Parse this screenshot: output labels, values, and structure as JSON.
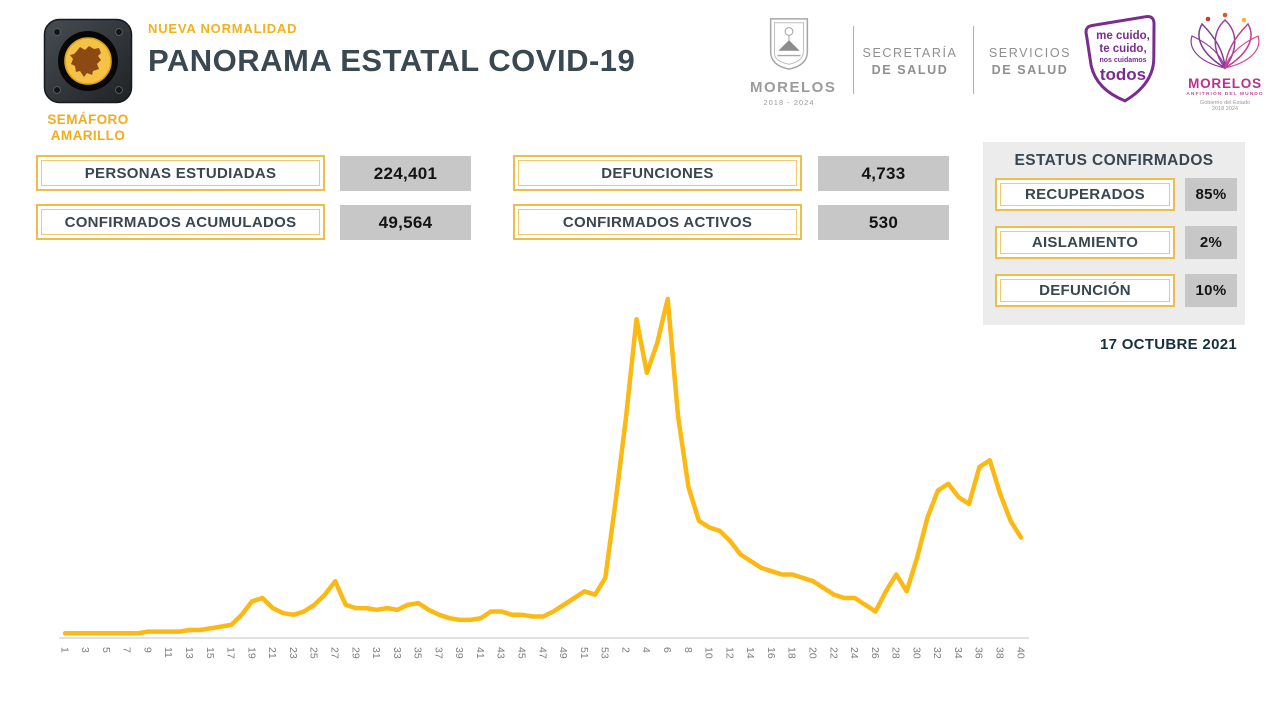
{
  "header": {
    "badge": {
      "line1": "SEMÁFORO",
      "line2": "AMARILLO"
    },
    "supertitle": "NUEVA NORMALIDAD",
    "title": "PANORAMA ESTATAL COVID-19",
    "logos": {
      "coat": {
        "name": "MORELOS",
        "years": "2018 - 2024"
      },
      "secretaria": {
        "line1": "SECRETARÍA",
        "line2": "DE SALUD"
      },
      "servicios": {
        "line1": "SERVICIOS",
        "line2": "DE SALUD"
      },
      "mecuido": {
        "line1": "me cuido,",
        "line2": "te cuido,",
        "line3": "nos cuidamos",
        "line4": "todos"
      },
      "brand": {
        "name": "MORELOS",
        "tagline": "ANFITRIÓN DEL MUNDO",
        "gov": "Gobierno del Estado",
        "years": "2018 2024"
      }
    }
  },
  "stats": [
    {
      "label": "PERSONAS ESTUDIADAS",
      "value": "224,401"
    },
    {
      "label": "CONFIRMADOS ACUMULADOS",
      "value": "49,564"
    },
    {
      "label": "DEFUNCIONES",
      "value": "4,733"
    },
    {
      "label": "CONFIRMADOS ACTIVOS",
      "value": "530"
    }
  ],
  "status_panel": {
    "title": "ESTATUS CONFIRMADOS",
    "rows": [
      {
        "label": "RECUPERADOS",
        "value": "85%"
      },
      {
        "label": "AISLAMIENTO",
        "value": "2%"
      },
      {
        "label": "DEFUNCIÓN",
        "value": "10%"
      }
    ]
  },
  "report_date": "17 OCTUBRE 2021",
  "colors": {
    "accent_yellow": "#FCB813",
    "gold_border": "#EDBE4B",
    "navy_text": "#3A4852",
    "value_box_gray": "#C7C7C7",
    "panel_gray": "#ECECEC",
    "purple_logo": "#7B2C8F",
    "magenta_logo": "#B5338A"
  },
  "chart_data": {
    "type": "line",
    "title": "",
    "xlabel": "",
    "ylabel": "",
    "x_axis_note": "epidemiological weeks: 1-53 of 2020 followed by 1-40 of 2021; every 2nd label shown, rotated 90°",
    "y_axis": {
      "visible": false,
      "values_normalized_to_peak": 100
    },
    "x_label_every": 2,
    "y_max": 100,
    "line_color": "#FCB813",
    "axis_color": "#D9D9D9",
    "grid": false,
    "legend": false,
    "categories": [
      "1",
      "2",
      "3",
      "4",
      "5",
      "6",
      "7",
      "8",
      "9",
      "10",
      "11",
      "12",
      "13",
      "14",
      "15",
      "16",
      "17",
      "18",
      "19",
      "20",
      "21",
      "22",
      "23",
      "24",
      "25",
      "26",
      "27",
      "28",
      "29",
      "30",
      "31",
      "32",
      "33",
      "34",
      "35",
      "36",
      "37",
      "38",
      "39",
      "40",
      "41",
      "42",
      "43",
      "44",
      "45",
      "46",
      "47",
      "48",
      "49",
      "50",
      "51",
      "52",
      "53",
      "1",
      "2",
      "3",
      "4",
      "5",
      "6",
      "7",
      "8",
      "9",
      "10",
      "11",
      "12",
      "13",
      "14",
      "15",
      "16",
      "17",
      "18",
      "19",
      "20",
      "21",
      "22",
      "23",
      "24",
      "25",
      "26",
      "27",
      "28",
      "29",
      "30",
      "31",
      "32",
      "33",
      "34",
      "35",
      "36",
      "37",
      "38",
      "39",
      "40"
    ],
    "series": [
      {
        "name": "casos semanales",
        "values": [
          0.5,
          0.5,
          0.5,
          0.5,
          0.5,
          0.5,
          0.5,
          0.5,
          1,
          1,
          1,
          1,
          1.5,
          1.5,
          2,
          2.5,
          3,
          6,
          10,
          11,
          8,
          6.5,
          6,
          7,
          9,
          12,
          16,
          9,
          8,
          8,
          7.5,
          8,
          7.5,
          9,
          9.5,
          7.5,
          6,
          5,
          4.5,
          4.5,
          5,
          7,
          7,
          6,
          6,
          5.5,
          5.5,
          7,
          9,
          11,
          13,
          12,
          17,
          40,
          65,
          94,
          78,
          87,
          100,
          65,
          44,
          34,
          32,
          31,
          28,
          24,
          22,
          20,
          19,
          18,
          18,
          17,
          16,
          14,
          12,
          11,
          11,
          9,
          7,
          13,
          18,
          13,
          23,
          35,
          43,
          45,
          41,
          39,
          50,
          52,
          42,
          34,
          29
        ]
      }
    ]
  }
}
